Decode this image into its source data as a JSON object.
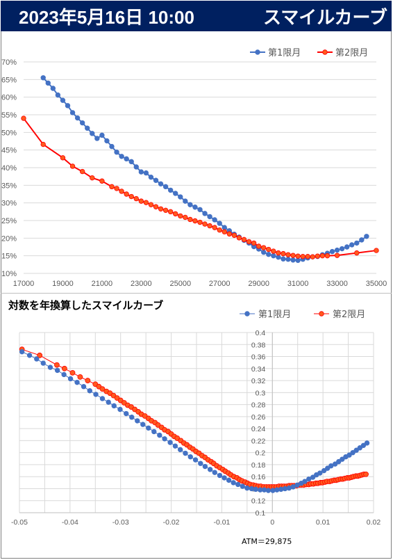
{
  "header": {
    "date": "2023年5月16日 10:00",
    "title": "スマイルカーブ",
    "bg_color": "#002060"
  },
  "colors": {
    "series1": "#4472c4",
    "series2": "#ff0000",
    "series2_marker": "#ff5a1f",
    "grid": "#d9d9d9"
  },
  "chart2_title": "対数を年換算したスマイルカーブ",
  "atm_label": "ATM＝29,875",
  "chart_data": [
    {
      "type": "line",
      "title": "",
      "xlabel": "",
      "ylabel": "",
      "xlim": [
        17000,
        35000
      ],
      "ylim": [
        0.1,
        0.7
      ],
      "x_ticks": [
        17000,
        19000,
        21000,
        23000,
        25000,
        27000,
        29000,
        31000,
        33000,
        35000
      ],
      "x_tick_labels": [
        "17000",
        "19000",
        "21000",
        "23000",
        "25000",
        "27000",
        "29000",
        "31000",
        "33000",
        "35000"
      ],
      "y_ticks": [
        0.1,
        0.15,
        0.2,
        0.25,
        0.3,
        0.35,
        0.4,
        0.45,
        0.5,
        0.55,
        0.6,
        0.65,
        0.7
      ],
      "y_tick_labels": [
        "10%",
        "15%",
        "20%",
        "25%",
        "30%",
        "35%",
        "40%",
        "45%",
        "50%",
        "55%",
        "60%",
        "65%",
        "70%"
      ],
      "grid": "horizontal",
      "legend": "top-right",
      "series": [
        {
          "name": "第1限月",
          "x": [
            18000,
            18250,
            18500,
            18750,
            19000,
            19250,
            19500,
            19750,
            20000,
            20250,
            20500,
            20750,
            21000,
            21250,
            21500,
            21750,
            22000,
            22250,
            22500,
            22750,
            23000,
            23250,
            23500,
            23750,
            24000,
            24250,
            24500,
            24750,
            25000,
            25250,
            25500,
            25750,
            26000,
            26250,
            26500,
            26750,
            27000,
            27250,
            27500,
            27750,
            28000,
            28250,
            28500,
            28750,
            29000,
            29250,
            29500,
            29750,
            30000,
            30250,
            30500,
            30750,
            31000,
            31250,
            31500,
            31750,
            32000,
            32250,
            32500,
            32750,
            33000,
            33250,
            33500,
            33750,
            34000,
            34250,
            34500
          ],
          "values": [
            0.655,
            0.64,
            0.625,
            0.606,
            0.591,
            0.576,
            0.556,
            0.541,
            0.527,
            0.512,
            0.497,
            0.483,
            0.492,
            0.476,
            0.46,
            0.444,
            0.432,
            0.425,
            0.417,
            0.402,
            0.388,
            0.385,
            0.373,
            0.364,
            0.354,
            0.346,
            0.336,
            0.327,
            0.317,
            0.305,
            0.295,
            0.288,
            0.281,
            0.27,
            0.261,
            0.252,
            0.242,
            0.23,
            0.221,
            0.211,
            0.203,
            0.194,
            0.186,
            0.176,
            0.169,
            0.16,
            0.154,
            0.15,
            0.146,
            0.141,
            0.14,
            0.138,
            0.137,
            0.14,
            0.144,
            0.147,
            0.148,
            0.153,
            0.157,
            0.162,
            0.166,
            0.17,
            0.175,
            0.181,
            0.186,
            0.195,
            0.205
          ]
        },
        {
          "name": "第2限月",
          "x": [
            17000,
            18000,
            19000,
            19500,
            20000,
            20500,
            21000,
            21500,
            21750,
            22000,
            22250,
            22500,
            22750,
            23000,
            23250,
            23500,
            23750,
            24000,
            24250,
            24500,
            24750,
            25000,
            25250,
            25500,
            25750,
            26000,
            26250,
            26500,
            26750,
            27000,
            27250,
            27500,
            27750,
            28000,
            28250,
            28500,
            28750,
            29000,
            29250,
            29500,
            29750,
            30000,
            30250,
            30500,
            30750,
            31000,
            31250,
            31500,
            31750,
            32000,
            32250,
            32500,
            33000,
            34000,
            35000
          ],
          "values": [
            0.54,
            0.466,
            0.428,
            0.404,
            0.389,
            0.371,
            0.362,
            0.346,
            0.341,
            0.333,
            0.325,
            0.318,
            0.312,
            0.305,
            0.301,
            0.295,
            0.289,
            0.283,
            0.279,
            0.275,
            0.269,
            0.263,
            0.259,
            0.253,
            0.249,
            0.245,
            0.24,
            0.235,
            0.23,
            0.223,
            0.218,
            0.212,
            0.208,
            0.201,
            0.196,
            0.19,
            0.186,
            0.177,
            0.173,
            0.168,
            0.163,
            0.158,
            0.156,
            0.153,
            0.151,
            0.149,
            0.148,
            0.148,
            0.147,
            0.149,
            0.15,
            0.15,
            0.151,
            0.158,
            0.165
          ]
        }
      ]
    },
    {
      "type": "line",
      "title": "対数を年換算したスマイルカーブ",
      "xlabel": "",
      "ylabel": "",
      "xlim": [
        -0.05,
        0.02
      ],
      "ylim": [
        0.1,
        0.4
      ],
      "x_ticks": [
        -0.05,
        -0.04,
        -0.03,
        -0.02,
        -0.01,
        0,
        0.01,
        0.02
      ],
      "x_tick_labels": [
        "-0.05",
        "-0.04",
        "-0.03",
        "-0.02",
        "-0.01",
        "0",
        "0.01",
        "0.02"
      ],
      "y_ticks": [
        0.1,
        0.12,
        0.14,
        0.16,
        0.18,
        0.2,
        0.22,
        0.24,
        0.26,
        0.28,
        0.3,
        0.32,
        0.34,
        0.36,
        0.38,
        0.4
      ],
      "y_tick_labels": [
        "0.1",
        "0.12",
        "0.14",
        "0.16",
        "0.18",
        "0.2",
        "0.22",
        "0.24",
        "0.26",
        "0.28",
        "0.3",
        "0.32",
        "0.34",
        "0.36",
        "0.38",
        "0.4"
      ],
      "grid": "both",
      "legend": "top-right",
      "series": [
        {
          "name": "第1限月",
          "x": [
            -0.0495,
            -0.048,
            -0.0466,
            -0.0453,
            -0.0439,
            -0.0425,
            -0.0412,
            -0.0399,
            -0.0386,
            -0.0373,
            -0.0361,
            -0.0349,
            -0.0336,
            -0.0324,
            -0.0313,
            -0.0301,
            -0.0289,
            -0.0278,
            -0.0267,
            -0.0256,
            -0.0245,
            -0.0234,
            -0.0223,
            -0.0213,
            -0.0202,
            -0.0192,
            -0.0182,
            -0.0172,
            -0.0162,
            -0.0152,
            -0.0142,
            -0.0133,
            -0.0123,
            -0.0114,
            -0.0104,
            -0.0095,
            -0.0086,
            -0.0077,
            -0.0068,
            -0.0059,
            -0.005,
            -0.0041,
            -0.0033,
            -0.0024,
            -0.0016,
            -0.0008,
            0.0001,
            0.0009,
            0.0017,
            0.0025,
            0.0033,
            0.0041,
            0.0049,
            0.0057,
            0.0064,
            0.0072,
            0.008,
            0.0087,
            0.0094,
            0.0102,
            0.0109,
            0.0116,
            0.0124,
            0.0131,
            0.0138,
            0.0145,
            0.0152,
            0.0159,
            0.0166,
            0.0173,
            0.018,
            0.0187
          ],
          "values": [
            0.368,
            0.362,
            0.356,
            0.349,
            0.342,
            0.337,
            0.33,
            0.323,
            0.317,
            0.31,
            0.303,
            0.297,
            0.29,
            0.284,
            0.278,
            0.272,
            0.265,
            0.259,
            0.253,
            0.247,
            0.241,
            0.235,
            0.229,
            0.223,
            0.217,
            0.211,
            0.205,
            0.199,
            0.193,
            0.188,
            0.182,
            0.177,
            0.172,
            0.167,
            0.162,
            0.158,
            0.154,
            0.15,
            0.147,
            0.144,
            0.141,
            0.14,
            0.139,
            0.138,
            0.138,
            0.137,
            0.137,
            0.138,
            0.139,
            0.14,
            0.141,
            0.143,
            0.146,
            0.149,
            0.152,
            0.156,
            0.159,
            0.163,
            0.166,
            0.17,
            0.174,
            0.178,
            0.181,
            0.185,
            0.189,
            0.193,
            0.196,
            0.2,
            0.204,
            0.208,
            0.212,
            0.216
          ]
        },
        {
          "name": "第2限月",
          "x": [
            -0.0495,
            -0.046,
            -0.0426,
            -0.0411,
            -0.0395,
            -0.038,
            -0.0365,
            -0.035,
            -0.0343,
            -0.0336,
            -0.0328,
            -0.0321,
            -0.0314,
            -0.0307,
            -0.03,
            -0.0293,
            -0.0286,
            -0.0279,
            -0.0272,
            -0.0265,
            -0.0259,
            -0.0252,
            -0.0245,
            -0.0239,
            -0.0232,
            -0.0226,
            -0.0219,
            -0.0213,
            -0.0206,
            -0.02,
            -0.0194,
            -0.0188,
            -0.0181,
            -0.0175,
            -0.0169,
            -0.0163,
            -0.0157,
            -0.0151,
            -0.0145,
            -0.0139,
            -0.0133,
            -0.0127,
            -0.0121,
            -0.0116,
            -0.011,
            -0.0104,
            -0.0098,
            -0.0093,
            -0.0087,
            -0.0082,
            -0.0076,
            -0.007,
            -0.0065,
            -0.006,
            -0.0054,
            -0.0049,
            -0.0044,
            -0.0038,
            -0.0033,
            -0.0028,
            -0.0023,
            -0.0017,
            -0.0012,
            -0.0007,
            -0.0002,
            0.0003,
            0.0008,
            0.0013,
            0.0018,
            0.0023,
            0.0028,
            0.0033,
            0.0038,
            0.0043,
            0.0048,
            0.0053,
            0.0057,
            0.0062,
            0.0067,
            0.0072,
            0.0076,
            0.0081,
            0.0086,
            0.009,
            0.0095,
            0.0099,
            0.0104,
            0.0108,
            0.0113,
            0.0117,
            0.0122,
            0.0126,
            0.013,
            0.0135,
            0.0139,
            0.0143,
            0.0148,
            0.0152,
            0.0156,
            0.016,
            0.0165,
            0.0169,
            0.0173,
            0.0177,
            0.0181,
            0.0185
          ],
          "values": [
            0.372,
            0.362,
            0.346,
            0.34,
            0.333,
            0.326,
            0.32,
            0.314,
            0.31,
            0.306,
            0.302,
            0.299,
            0.295,
            0.291,
            0.287,
            0.283,
            0.279,
            0.276,
            0.272,
            0.268,
            0.264,
            0.261,
            0.257,
            0.253,
            0.25,
            0.246,
            0.242,
            0.238,
            0.235,
            0.231,
            0.227,
            0.224,
            0.22,
            0.216,
            0.213,
            0.209,
            0.206,
            0.202,
            0.199,
            0.195,
            0.192,
            0.188,
            0.185,
            0.182,
            0.178,
            0.175,
            0.172,
            0.169,
            0.166,
            0.163,
            0.16,
            0.158,
            0.155,
            0.153,
            0.151,
            0.149,
            0.147,
            0.146,
            0.145,
            0.144,
            0.144,
            0.143,
            0.143,
            0.143,
            0.143,
            0.143,
            0.143,
            0.144,
            0.144,
            0.144,
            0.144,
            0.145,
            0.145,
            0.145,
            0.145,
            0.146,
            0.146,
            0.146,
            0.147,
            0.147,
            0.148,
            0.148,
            0.149,
            0.149,
            0.15,
            0.15,
            0.151,
            0.152,
            0.152,
            0.153,
            0.154,
            0.154,
            0.155,
            0.156,
            0.156,
            0.157,
            0.158,
            0.158,
            0.159,
            0.16,
            0.161,
            0.161,
            0.162,
            0.163,
            0.164,
            0.164
          ]
        }
      ]
    }
  ]
}
